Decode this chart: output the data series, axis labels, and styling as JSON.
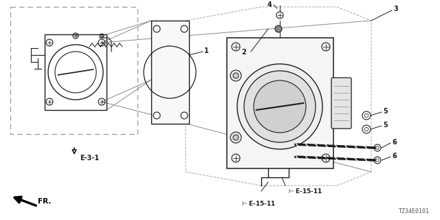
{
  "bg_color": "#ffffff",
  "ref_code": "TZ34E0101",
  "dark": "#1a1a1a",
  "gray": "#888888",
  "light_gray": "#cccccc"
}
